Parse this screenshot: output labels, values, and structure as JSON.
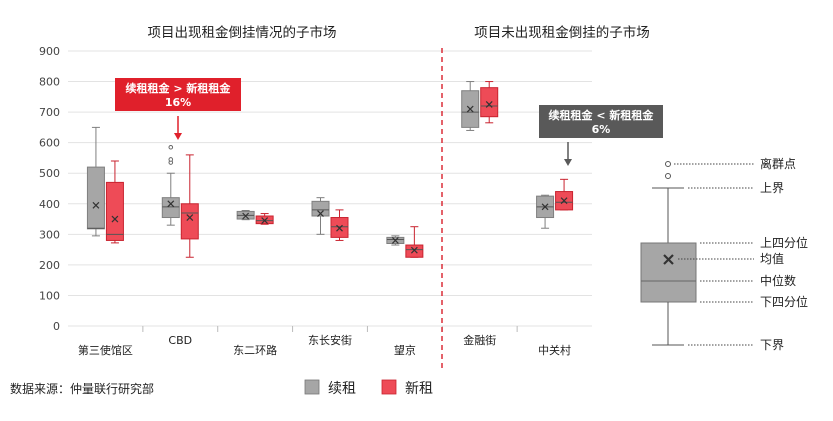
{
  "section_titles": {
    "left": "项目出现租金倒挂情况的子市场",
    "right": "项目未出现租金倒挂的子市场"
  },
  "callouts": [
    {
      "line1": "续租租金 > 新租租金",
      "line2": "16%",
      "color": "#e0202b"
    },
    {
      "line1": "续租租金 < 新租租金",
      "line2": "6%",
      "color": "#595959"
    }
  ],
  "legend_box": {
    "outlier": "离群点",
    "upper": "上界",
    "q3": "上四分位",
    "mean": "均值",
    "median": "中位数",
    "q1": "下四分位",
    "lower": "下界"
  },
  "source": "数据来源：仲量联行研究部",
  "legend": [
    {
      "name": "续租",
      "color": "#a6a6a6"
    },
    {
      "name": "新租",
      "color": "#ee4b57"
    }
  ],
  "chart_data": {
    "type": "box",
    "title": "",
    "xlabel": "",
    "ylabel": "",
    "ylim": [
      0,
      900
    ],
    "yticks": [
      0,
      100,
      200,
      300,
      400,
      500,
      600,
      700,
      800,
      900
    ],
    "grid": true,
    "categories": [
      "第三使馆区",
      "CBD",
      "东二环路",
      "东长安街",
      "望京",
      "金融街",
      "中关村"
    ],
    "series": [
      {
        "name": "续租",
        "color": "#a6a6a6",
        "boxes": [
          {
            "min": 295,
            "q1": 318,
            "median": 320,
            "q3": 520,
            "max": 650,
            "mean": 395,
            "outliers": []
          },
          {
            "min": 330,
            "q1": 355,
            "median": 390,
            "q3": 420,
            "max": 500,
            "mean": 400,
            "outliers": [
              535,
              545,
              585
            ]
          },
          {
            "min": 348,
            "q1": 350,
            "median": 362,
            "q3": 375,
            "max": 378,
            "mean": 360,
            "outliers": []
          },
          {
            "min": 300,
            "q1": 360,
            "median": 380,
            "q3": 408,
            "max": 420,
            "mean": 368,
            "outliers": []
          },
          {
            "min": 265,
            "q1": 270,
            "median": 283,
            "q3": 290,
            "max": 295,
            "mean": 280,
            "outliers": []
          },
          {
            "min": 640,
            "q1": 650,
            "median": 700,
            "q3": 770,
            "max": 800,
            "mean": 710,
            "outliers": []
          },
          {
            "min": 320,
            "q1": 355,
            "median": 390,
            "q3": 425,
            "max": 428,
            "mean": 390,
            "outliers": []
          }
        ]
      },
      {
        "name": "新租",
        "color": "#ee4b57",
        "boxes": [
          {
            "min": 272,
            "q1": 280,
            "median": 300,
            "q3": 470,
            "max": 540,
            "mean": 350,
            "outliers": []
          },
          {
            "min": 225,
            "q1": 285,
            "median": 370,
            "q3": 400,
            "max": 560,
            "mean": 355,
            "outliers": []
          },
          {
            "min": 333,
            "q1": 335,
            "median": 345,
            "q3": 360,
            "max": 368,
            "mean": 345,
            "outliers": []
          },
          {
            "min": 280,
            "q1": 290,
            "median": 325,
            "q3": 355,
            "max": 380,
            "mean": 320,
            "outliers": []
          },
          {
            "min": 225,
            "q1": 225,
            "median": 250,
            "q3": 265,
            "max": 325,
            "mean": 248,
            "outliers": []
          },
          {
            "min": 665,
            "q1": 685,
            "median": 720,
            "q3": 780,
            "max": 800,
            "mean": 725,
            "outliers": []
          },
          {
            "min": 380,
            "q1": 380,
            "median": 405,
            "q3": 440,
            "max": 480,
            "mean": 410,
            "outliers": []
          }
        ]
      }
    ]
  }
}
